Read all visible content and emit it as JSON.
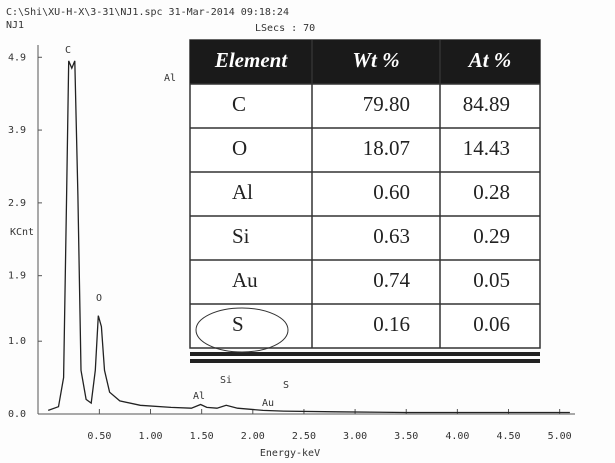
{
  "chart_data": {
    "type": "line",
    "title": "C:\\Shi\\XU-H-X\\3-31\\NJ1.spc  31-Mar-2014 09:18:24",
    "subtitle": "NJ1",
    "live_time": "LSecs : 70",
    "xlabel": "Energy-keV",
    "ylabel": "KCnt",
    "color": "#222222",
    "x": [
      0.0,
      0.1,
      0.15,
      0.18,
      0.2,
      0.23,
      0.26,
      0.29,
      0.32,
      0.37,
      0.42,
      0.46,
      0.49,
      0.52,
      0.55,
      0.6,
      0.7,
      0.9,
      1.2,
      1.4,
      1.49,
      1.55,
      1.65,
      1.74,
      1.85,
      2.1,
      2.3,
      2.8,
      3.5,
      4.5,
      5.1
    ],
    "values": [
      0.05,
      0.1,
      0.5,
      3.0,
      4.85,
      4.75,
      4.85,
      3.0,
      0.6,
      0.2,
      0.15,
      0.6,
      1.35,
      1.2,
      0.6,
      0.3,
      0.18,
      0.12,
      0.09,
      0.08,
      0.13,
      0.09,
      0.08,
      0.12,
      0.08,
      0.05,
      0.04,
      0.03,
      0.02,
      0.02,
      0.02
    ],
    "xlim": [
      -0.1,
      5.15
    ],
    "ylim": [
      0,
      5
    ],
    "xticks": [
      {
        "value": 0.5,
        "label": "0.50"
      },
      {
        "value": 1,
        "label": "1.00"
      },
      {
        "value": 1.5,
        "label": "1.50"
      },
      {
        "value": 2,
        "label": "2.00"
      },
      {
        "value": 2.5,
        "label": "2.50"
      },
      {
        "value": 3,
        "label": "3.00"
      },
      {
        "value": 3.5,
        "label": "3.50"
      },
      {
        "value": 4,
        "label": "4.00"
      },
      {
        "value": 4.5,
        "label": "4.50"
      },
      {
        "value": 5,
        "label": "5.00"
      }
    ],
    "yticks": [
      {
        "value": 0,
        "label": "0.0"
      },
      {
        "value": 1,
        "label": "1.0"
      },
      1.9,
      2.9,
      3.9,
      4.9
    ],
    "annotations": [
      "C",
      "O",
      "Al",
      "Al",
      "Si",
      "Au",
      "S"
    ]
  },
  "table": {
    "columns": [
      "Element",
      "Wt %",
      "At %"
    ],
    "rows": [
      [
        "C",
        "79.80",
        "84.89"
      ],
      [
        "O",
        "18.07",
        "14.43"
      ],
      [
        "Al",
        "0.60",
        "0.28"
      ],
      [
        "Si",
        "0.63",
        "0.29"
      ],
      [
        "Au",
        "0.74",
        "0.05"
      ],
      [
        "S",
        "0.16",
        "0.06"
      ]
    ]
  }
}
